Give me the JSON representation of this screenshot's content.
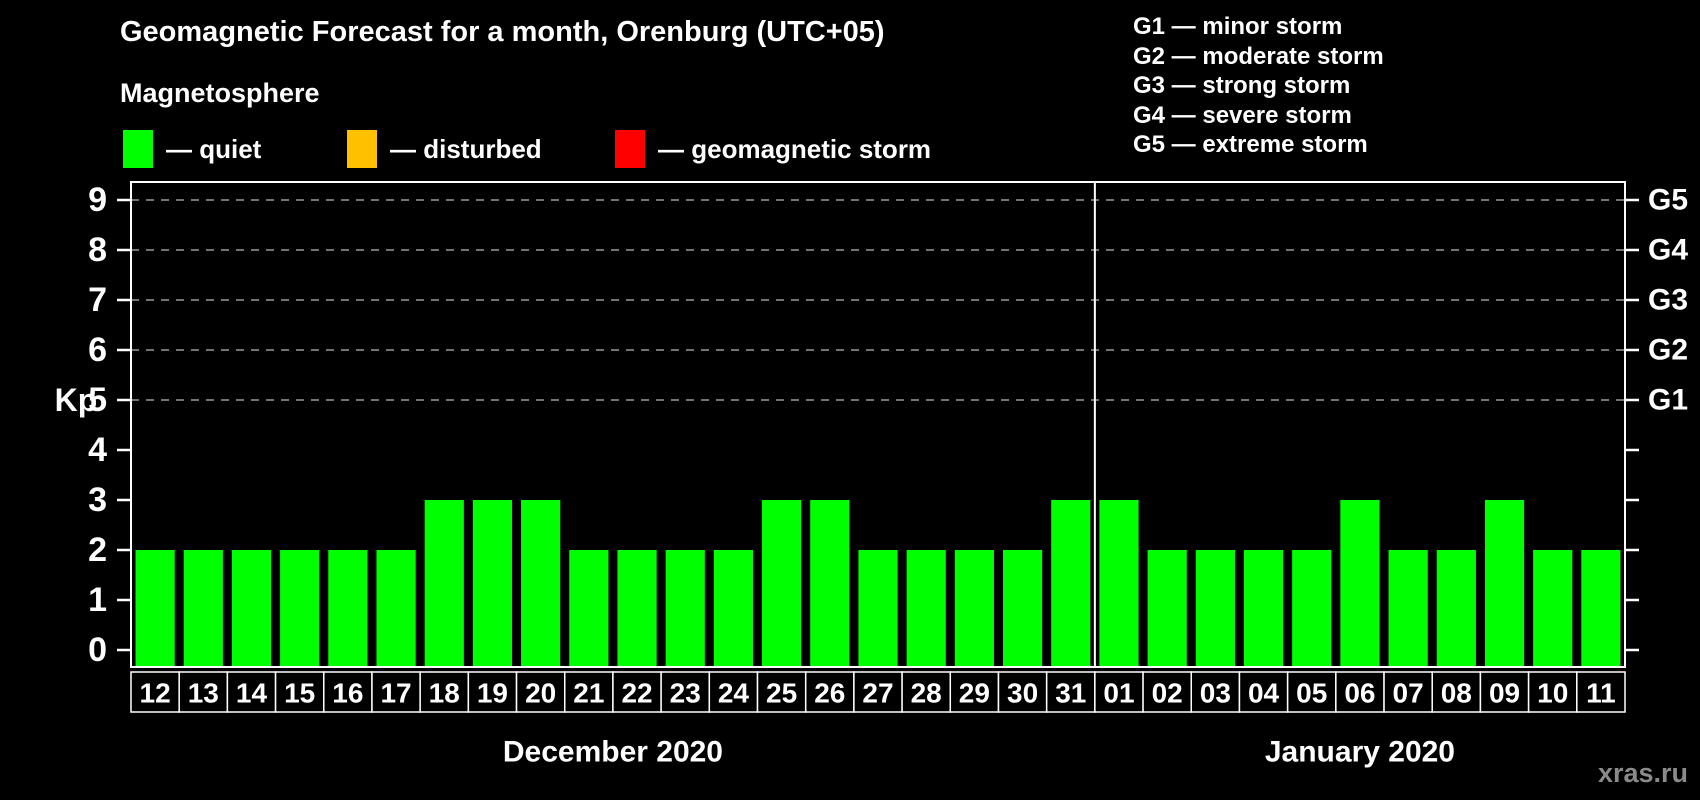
{
  "ui": {
    "legend_separator": "—"
  },
  "header": {
    "title": "Geomagnetic Forecast for a month, Orenburg (UTC+05)",
    "subtitle": "Magnetosphere"
  },
  "kp_legend": [
    {
      "status": "quiet",
      "label": "quiet",
      "color": "#00ff00"
    },
    {
      "status": "disturbed",
      "label": "disturbed",
      "color": "#ffc000"
    },
    {
      "status": "storm",
      "label": "geomagnetic storm",
      "color": "#ff0000"
    }
  ],
  "g_legend": [
    {
      "level": "G1",
      "desc": "minor storm"
    },
    {
      "level": "G2",
      "desc": "moderate storm"
    },
    {
      "level": "G3",
      "desc": "strong storm"
    },
    {
      "level": "G4",
      "desc": "severe storm"
    },
    {
      "level": "G5",
      "desc": "extreme storm"
    }
  ],
  "watermark": "xras.ru",
  "status_colors": {
    "quiet": "#00ff00",
    "disturbed": "#ffc000",
    "storm": "#ff0000"
  },
  "chart_data": {
    "type": "bar",
    "title": "Geomagnetic Forecast for a month, Orenburg (UTC+05)",
    "ylabel": "Kp",
    "ylim": [
      0,
      9.4
    ],
    "yticks": [
      0,
      1,
      2,
      3,
      4,
      5,
      6,
      7,
      8,
      9
    ],
    "gridline_kp": [
      5,
      6,
      7,
      8,
      9
    ],
    "grid_style": "dashed horizontal",
    "legend_position": "top-left",
    "right_axis": [
      {
        "kp": 5,
        "label": "G1"
      },
      {
        "kp": 6,
        "label": "G2"
      },
      {
        "kp": 7,
        "label": "G3"
      },
      {
        "kp": 8,
        "label": "G4"
      },
      {
        "kp": 9,
        "label": "G5"
      }
    ],
    "months": [
      {
        "label": "December 2020",
        "days": [
          {
            "day": "12",
            "kp": 2,
            "status": "quiet"
          },
          {
            "day": "13",
            "kp": 2,
            "status": "quiet"
          },
          {
            "day": "14",
            "kp": 2,
            "status": "quiet"
          },
          {
            "day": "15",
            "kp": 2,
            "status": "quiet"
          },
          {
            "day": "16",
            "kp": 2,
            "status": "quiet"
          },
          {
            "day": "17",
            "kp": 2,
            "status": "quiet"
          },
          {
            "day": "18",
            "kp": 3,
            "status": "quiet"
          },
          {
            "day": "19",
            "kp": 3,
            "status": "quiet"
          },
          {
            "day": "20",
            "kp": 3,
            "status": "quiet"
          },
          {
            "day": "21",
            "kp": 2,
            "status": "quiet"
          },
          {
            "day": "22",
            "kp": 2,
            "status": "quiet"
          },
          {
            "day": "23",
            "kp": 2,
            "status": "quiet"
          },
          {
            "day": "24",
            "kp": 2,
            "status": "quiet"
          },
          {
            "day": "25",
            "kp": 3,
            "status": "quiet"
          },
          {
            "day": "26",
            "kp": 3,
            "status": "quiet"
          },
          {
            "day": "27",
            "kp": 2,
            "status": "quiet"
          },
          {
            "day": "28",
            "kp": 2,
            "status": "quiet"
          },
          {
            "day": "29",
            "kp": 2,
            "status": "quiet"
          },
          {
            "day": "30",
            "kp": 2,
            "status": "quiet"
          },
          {
            "day": "31",
            "kp": 3,
            "status": "quiet"
          }
        ]
      },
      {
        "label": "January 2020",
        "days": [
          {
            "day": "01",
            "kp": 3,
            "status": "quiet"
          },
          {
            "day": "02",
            "kp": 2,
            "status": "quiet"
          },
          {
            "day": "03",
            "kp": 2,
            "status": "quiet"
          },
          {
            "day": "04",
            "kp": 2,
            "status": "quiet"
          },
          {
            "day": "05",
            "kp": 2,
            "status": "quiet"
          },
          {
            "day": "06",
            "kp": 3,
            "status": "quiet"
          },
          {
            "day": "07",
            "kp": 2,
            "status": "quiet"
          },
          {
            "day": "08",
            "kp": 2,
            "status": "quiet"
          },
          {
            "day": "09",
            "kp": 3,
            "status": "quiet"
          },
          {
            "day": "10",
            "kp": 2,
            "status": "quiet"
          },
          {
            "day": "11",
            "kp": 2,
            "status": "quiet"
          }
        ]
      }
    ]
  }
}
